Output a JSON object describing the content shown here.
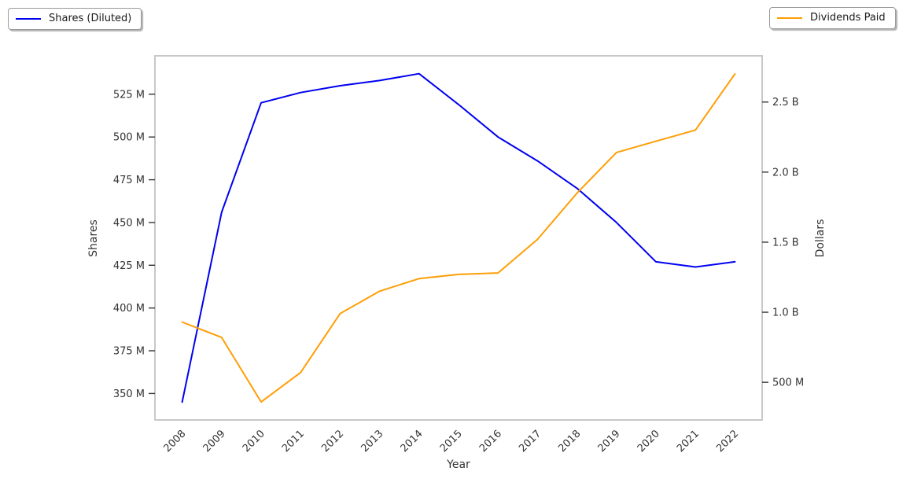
{
  "legend_left": {
    "label": "Shares (Diluted)"
  },
  "legend_right": {
    "label": "Dividends Paid"
  },
  "chart_data": {
    "type": "line",
    "title": "",
    "x": [
      2008,
      2009,
      2010,
      2011,
      2012,
      2013,
      2014,
      2015,
      2016,
      2017,
      2018,
      2019,
      2020,
      2021,
      2022
    ],
    "series": [
      {
        "name": "Shares (Diluted)",
        "axis": "left",
        "color": "#0000f0",
        "unit": "shares, millions",
        "values_millions": [
          345,
          456,
          520,
          526,
          530,
          533,
          537,
          519,
          500,
          486,
          470,
          450,
          427,
          424,
          427
        ]
      },
      {
        "name": "Dividends Paid",
        "axis": "right",
        "color": "#ff9e05",
        "unit": "dollars, billions",
        "values_billions": [
          0.93,
          0.82,
          0.36,
          0.57,
          0.99,
          1.15,
          1.24,
          1.27,
          1.28,
          1.52,
          1.85,
          2.14,
          2.22,
          2.3,
          2.7
        ]
      }
    ],
    "x_axis": {
      "label": "Year",
      "ticks": [
        "2008",
        "2009",
        "2010",
        "2011",
        "2012",
        "2013",
        "2014",
        "2015",
        "2016",
        "2017",
        "2018",
        "2019",
        "2020",
        "2021",
        "2022"
      ],
      "tick_values": [
        2008,
        2009,
        2010,
        2011,
        2012,
        2013,
        2014,
        2015,
        2016,
        2017,
        2018,
        2019,
        2020,
        2021,
        2022
      ],
      "range": [
        2007.33,
        2022.67
      ],
      "tick_rotation_deg": 45
    },
    "y_left": {
      "label": "Shares",
      "ticks": [
        "350 M",
        "375 M",
        "400 M",
        "425 M",
        "450 M",
        "475 M",
        "500 M",
        "525 M"
      ],
      "tick_values_millions": [
        350,
        375,
        400,
        425,
        450,
        475,
        500,
        525
      ],
      "range_millions": [
        335,
        547
      ]
    },
    "y_right": {
      "label": "Dollars",
      "ticks": [
        "500 M",
        "1.0 B",
        "1.5 B",
        "2.0 B",
        "2.5 B"
      ],
      "tick_values_billions": [
        0.5,
        1.0,
        1.5,
        2.0,
        2.5
      ],
      "range_billions": [
        0.237,
        2.824
      ]
    },
    "grid": "off",
    "legend_position": "top-left and top-right, outside plot",
    "frame_color": "#c8c8c8",
    "tick_color": "#333333"
  }
}
